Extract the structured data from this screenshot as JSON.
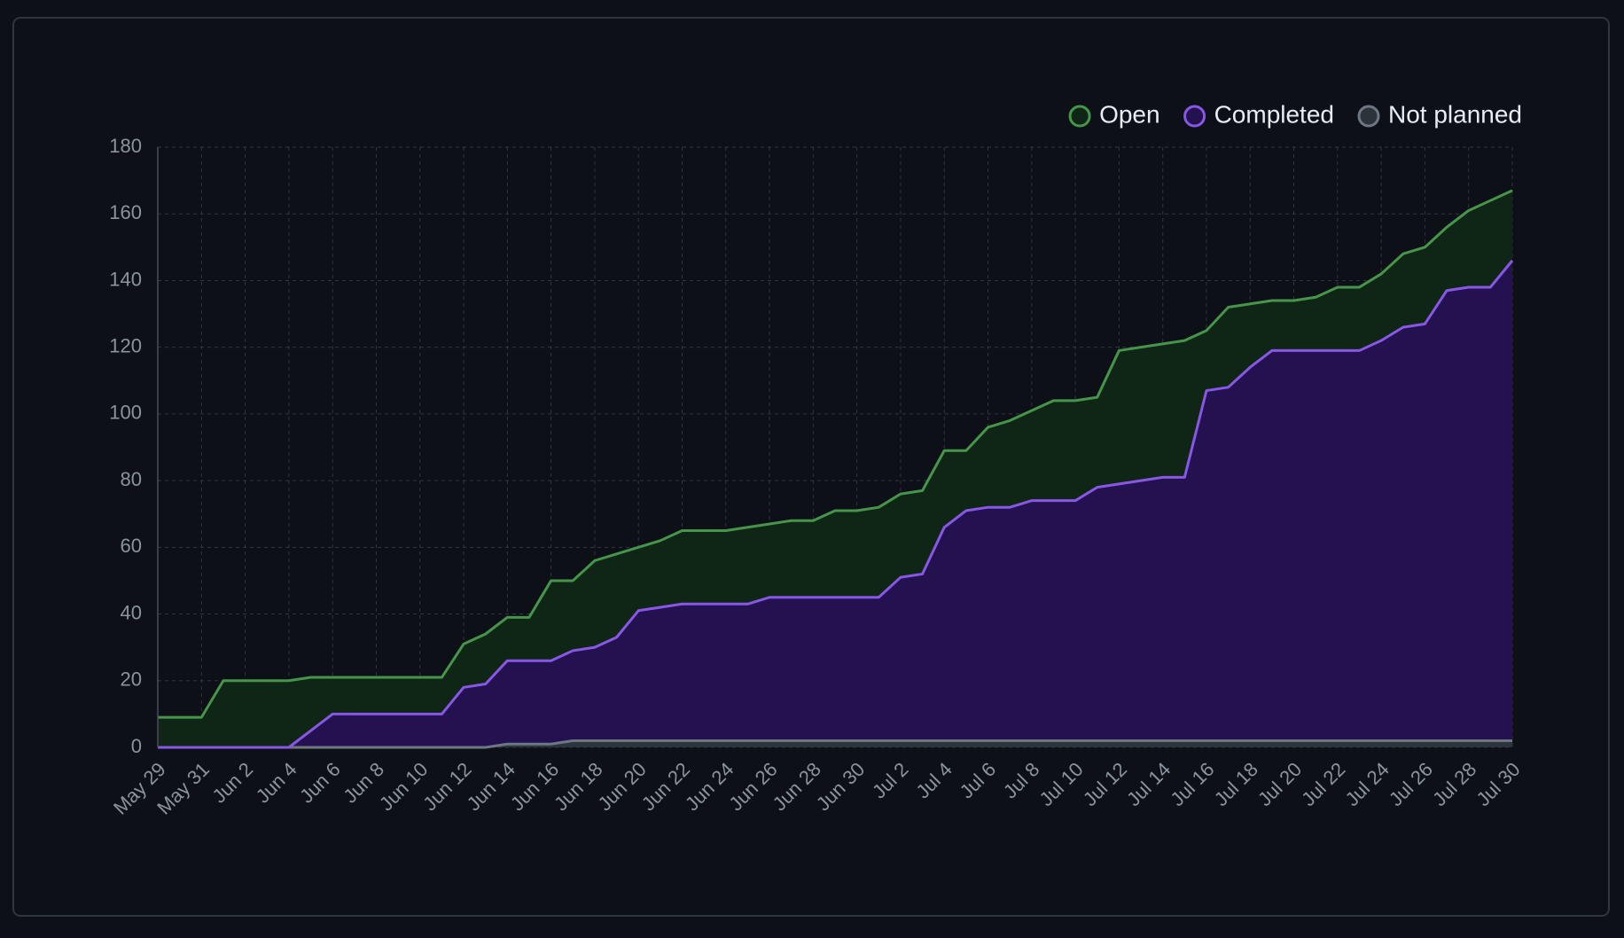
{
  "chart_data": {
    "type": "stacked_area",
    "categories": [
      "May 29",
      null,
      "May 31",
      null,
      "Jun 2",
      null,
      "Jun 4",
      null,
      "Jun 6",
      null,
      "Jun 8",
      null,
      "Jun 10",
      null,
      "Jun 12",
      null,
      "Jun 14",
      null,
      "Jun 16",
      null,
      "Jun 18",
      null,
      "Jun 20",
      null,
      "Jun 22",
      null,
      "Jun 24",
      null,
      "Jun 26",
      null,
      "Jun 28",
      null,
      "Jun 30",
      null,
      "Jul 2",
      null,
      "Jul 4",
      null,
      "Jul 6",
      null,
      "Jul 8",
      null,
      "Jul 10",
      null,
      "Jul 12",
      null,
      "Jul 14",
      null,
      "Jul 16",
      null,
      "Jul 18",
      null,
      "Jul 20",
      null,
      "Jul 22",
      null,
      "Jul 24",
      null,
      "Jul 26",
      null,
      "Jul 28",
      null,
      "Jul 30"
    ],
    "series": [
      {
        "name": "Open",
        "color": "#46954a",
        "fill": "#0f2516",
        "values": [
          9,
          9,
          9,
          20,
          20,
          20,
          20,
          16,
          11,
          11,
          11,
          11,
          11,
          11,
          13,
          15,
          13,
          13,
          24,
          21,
          26,
          25,
          19,
          20,
          22,
          22,
          22,
          23,
          22,
          23,
          23,
          26,
          26,
          27,
          25,
          25,
          23,
          18,
          24,
          26,
          27,
          30,
          30,
          27,
          40,
          40,
          40,
          41,
          18,
          24,
          19,
          15,
          15,
          16,
          19,
          19,
          20,
          22,
          23,
          19,
          23,
          26,
          21
        ]
      },
      {
        "name": "Completed",
        "color": "#8957e5",
        "fill": "#24114f",
        "values": [
          0,
          0,
          0,
          0,
          0,
          0,
          0,
          5,
          10,
          10,
          10,
          10,
          10,
          10,
          18,
          19,
          25,
          25,
          25,
          27,
          28,
          31,
          39,
          40,
          41,
          41,
          41,
          41,
          43,
          43,
          43,
          43,
          43,
          43,
          49,
          50,
          64,
          69,
          70,
          70,
          72,
          72,
          72,
          76,
          77,
          78,
          79,
          79,
          105,
          106,
          112,
          117,
          117,
          117,
          117,
          117,
          120,
          124,
          125,
          135,
          136,
          136,
          144
        ]
      },
      {
        "name": "Not planned",
        "color": "#6e7681",
        "fill": "#2d333b",
        "values": [
          0,
          0,
          0,
          0,
          0,
          0,
          0,
          0,
          0,
          0,
          0,
          0,
          0,
          0,
          0,
          0,
          1,
          1,
          1,
          2,
          2,
          2,
          2,
          2,
          2,
          2,
          2,
          2,
          2,
          2,
          2,
          2,
          2,
          2,
          2,
          2,
          2,
          2,
          2,
          2,
          2,
          2,
          2,
          2,
          2,
          2,
          2,
          2,
          2,
          2,
          2,
          2,
          2,
          2,
          2,
          2,
          2,
          2,
          2,
          2,
          2,
          2,
          2
        ]
      }
    ],
    "stack_order": "reverse",
    "ylim": [
      0,
      180
    ],
    "yticks": [
      0,
      20,
      40,
      60,
      80,
      100,
      120,
      140,
      160,
      180
    ],
    "grid": true,
    "legend_position": "top-right"
  }
}
